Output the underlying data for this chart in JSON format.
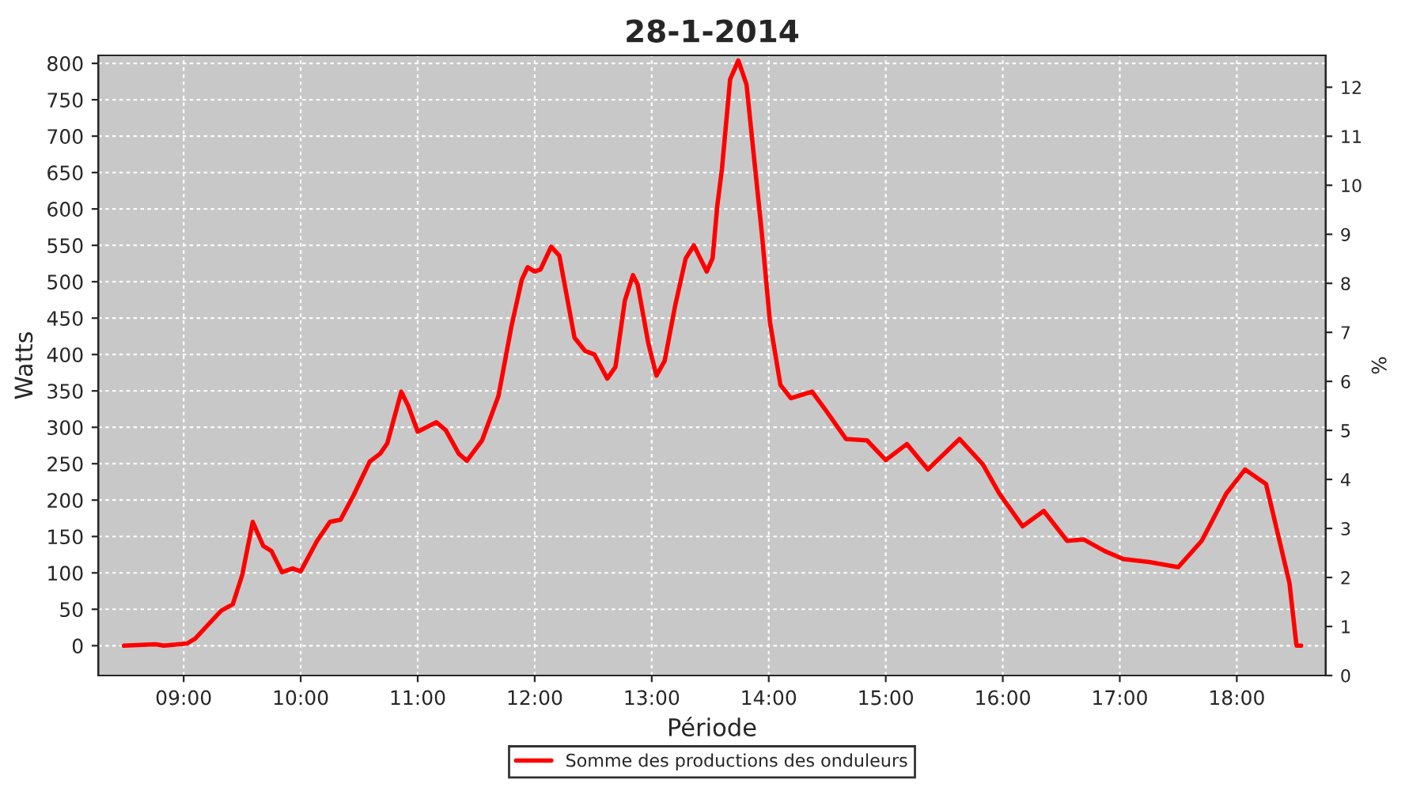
{
  "chart_data": {
    "type": "line",
    "title": "28-1-2014",
    "xlabel": "Période",
    "ylabel": "Watts",
    "y2label": "%",
    "x": [
      8.49,
      8.76,
      8.83,
      9.03,
      9.1,
      9.32,
      9.42,
      9.5,
      9.59,
      9.68,
      9.75,
      9.84,
      9.93,
      10.0,
      10.14,
      10.25,
      10.34,
      10.45,
      10.59,
      10.68,
      10.74,
      10.86,
      10.92,
      11.0,
      11.16,
      11.24,
      11.35,
      11.42,
      11.55,
      11.69,
      11.8,
      11.89,
      11.94,
      12.0,
      12.05,
      12.14,
      12.21,
      12.34,
      12.43,
      12.51,
      12.62,
      12.69,
      12.77,
      12.84,
      12.88,
      12.97,
      13.04,
      13.11,
      13.2,
      13.29,
      13.36,
      13.47,
      13.52,
      13.56,
      13.6,
      13.67,
      13.74,
      13.81,
      13.87,
      13.94,
      14.01,
      14.1,
      14.19,
      14.37,
      14.48,
      14.66,
      14.84,
      15.0,
      15.18,
      15.36,
      15.63,
      15.83,
      15.97,
      16.17,
      16.35,
      16.55,
      16.69,
      16.87,
      17.03,
      17.25,
      17.5,
      17.7,
      17.91,
      18.07,
      18.25,
      18.45,
      18.51,
      18.55
    ],
    "series": [
      {
        "name": "Somme des productions des onduleurs",
        "color": "#ff0000",
        "values": [
          0,
          2,
          0,
          3,
          10,
          48,
          57,
          97,
          170,
          137,
          130,
          101,
          106,
          102,
          144,
          170,
          173,
          206,
          253,
          264,
          278,
          349,
          329,
          294,
          307,
          296,
          264,
          254,
          282,
          343,
          438,
          503,
          520,
          514,
          517,
          548,
          536,
          423,
          405,
          400,
          367,
          383,
          474,
          509,
          496,
          416,
          371,
          391,
          467,
          532,
          550,
          514,
          532,
          604,
          655,
          778,
          804,
          771,
          677,
          568,
          445,
          358,
          340,
          349,
          325,
          284,
          282,
          255,
          277,
          242,
          284,
          249,
          209,
          164,
          185,
          144,
          146,
          130,
          119,
          115,
          108,
          144,
          209,
          242,
          222,
          86,
          0,
          0
        ]
      }
    ],
    "xlim": [
      8.27,
      18.76
    ],
    "xticks": [
      {
        "value": 9,
        "label": "09:00"
      },
      {
        "value": 10,
        "label": "10:00"
      },
      {
        "value": 11,
        "label": "11:00"
      },
      {
        "value": 12,
        "label": "12:00"
      },
      {
        "value": 13,
        "label": "13:00"
      },
      {
        "value": 14,
        "label": "14:00"
      },
      {
        "value": 15,
        "label": "15:00"
      },
      {
        "value": 16,
        "label": "16:00"
      },
      {
        "value": 17,
        "label": "17:00"
      },
      {
        "value": 18,
        "label": "18:00"
      }
    ],
    "ylim": [
      -41,
      811
    ],
    "yticks": [
      0,
      50,
      100,
      150,
      200,
      250,
      300,
      350,
      400,
      450,
      500,
      550,
      600,
      650,
      700,
      750,
      800
    ],
    "y2lim": [
      0,
      12.65
    ],
    "y2ticks": [
      0,
      1,
      2,
      3,
      4,
      5,
      6,
      7,
      8,
      9,
      10,
      11,
      12
    ],
    "grid": true,
    "legend": "bottom",
    "marker": "none",
    "line_style": "solid"
  }
}
